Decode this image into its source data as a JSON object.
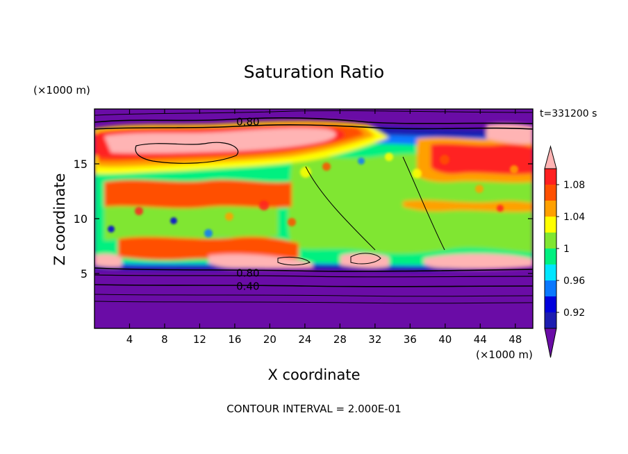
{
  "chart_data": {
    "type": "heatmap",
    "title": "Saturation Ratio",
    "xlabel": "X coordinate",
    "ylabel": "Z coordinate",
    "x_unit": "(×1000 m)",
    "y_unit": "(×1000 m)",
    "time_label": "t=331200 s",
    "footer": "CONTOUR INTERVAL = 2.000E-01",
    "xlim": [
      0,
      50
    ],
    "ylim": [
      0,
      20
    ],
    "x_ticks": [
      4,
      8,
      12,
      16,
      20,
      24,
      28,
      32,
      36,
      40,
      44,
      48
    ],
    "y_ticks": [
      5,
      10,
      15
    ],
    "contour_labels": [
      {
        "text": "0.80",
        "x": 17.5,
        "y": 18.9
      },
      {
        "text": "0.80",
        "x": 17.5,
        "y": 5.1
      },
      {
        "text": "0.40",
        "x": 17.5,
        "y": 3.9
      }
    ],
    "colorbar": {
      "levels": [
        0.9,
        0.92,
        0.94,
        0.96,
        0.98,
        1.0,
        1.02,
        1.04,
        1.06,
        1.08,
        1.1
      ],
      "tick_labels": [
        {
          "text": "0.92",
          "value": 0.92
        },
        {
          "text": "0.96",
          "value": 0.96
        },
        {
          "text": "1",
          "value": 1.0
        },
        {
          "text": "1.04",
          "value": 1.04
        },
        {
          "text": "1.08",
          "value": 1.08
        }
      ],
      "colors": [
        "#6a0ca6",
        "#1c1cb0",
        "#0000dc",
        "#0a78ff",
        "#00e6ff",
        "#00f080",
        "#80e632",
        "#ffff00",
        "#ffa000",
        "#ff5000",
        "#ff2020",
        "#ffb4b4"
      ]
    }
  }
}
